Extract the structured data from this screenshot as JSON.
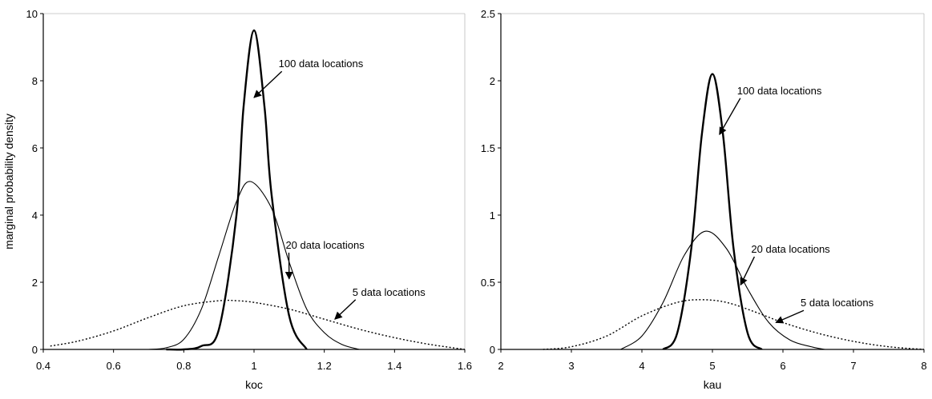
{
  "chart_data": [
    {
      "type": "line",
      "xlabel": "koc",
      "ylabel": "marginal probability density",
      "xlim": [
        0.4,
        1.6
      ],
      "ylim": [
        0,
        10
      ],
      "xticks": [
        "0.4",
        "0.6",
        "0.8",
        "1",
        "1.2",
        "1.4",
        "1.6"
      ],
      "yticks": [
        "0",
        "2",
        "4",
        "6",
        "8",
        "10"
      ],
      "grid": false,
      "series": [
        {
          "x": [
            0.75,
            0.8,
            0.85,
            0.9,
            0.95,
            0.97,
            1.0,
            1.03,
            1.05,
            1.1,
            1.15
          ],
          "y": [
            0.0,
            0.0,
            0.1,
            0.6,
            4.0,
            7.2,
            9.5,
            7.2,
            4.6,
            1.0,
            0.0
          ]
        },
        {
          "x": [
            0.7,
            0.75,
            0.8,
            0.85,
            0.9,
            0.95,
            0.99,
            1.05,
            1.1,
            1.15,
            1.2,
            1.25,
            1.3
          ],
          "y": [
            0.0,
            0.05,
            0.3,
            1.2,
            2.8,
            4.4,
            5.0,
            4.2,
            2.6,
            1.2,
            0.5,
            0.15,
            0.0
          ]
        },
        {
          "x": [
            0.42,
            0.5,
            0.6,
            0.7,
            0.8,
            0.9,
            0.95,
            1.0,
            1.1,
            1.2,
            1.3,
            1.4,
            1.5,
            1.6
          ],
          "y": [
            0.1,
            0.25,
            0.55,
            0.95,
            1.3,
            1.45,
            1.45,
            1.4,
            1.2,
            0.9,
            0.6,
            0.35,
            0.15,
            0.0
          ]
        }
      ],
      "annotations": [
        {
          "text": "100 data locations",
          "x": 1.07,
          "y": 8.4,
          "arrow_to": [
            1.0,
            7.5
          ]
        },
        {
          "text": "20 data locations",
          "x": 1.09,
          "y": 3.0,
          "arrow_to": [
            1.1,
            2.1
          ]
        },
        {
          "text": "5 data locations",
          "x": 1.28,
          "y": 1.6,
          "arrow_to": [
            1.23,
            0.9
          ]
        }
      ]
    },
    {
      "type": "line",
      "xlabel": "kau",
      "ylabel": "",
      "xlim": [
        2,
        8
      ],
      "ylim": [
        0,
        2.5
      ],
      "xticks": [
        "2",
        "3",
        "4",
        "5",
        "6",
        "7",
        "8"
      ],
      "yticks": [
        "0",
        "0.5",
        "1",
        "1.5",
        "2",
        "2.5"
      ],
      "grid": false,
      "series": [
        {
          "x": [
            4.3,
            4.5,
            4.7,
            4.85,
            5.0,
            5.15,
            5.3,
            5.5,
            5.7
          ],
          "y": [
            0.0,
            0.12,
            0.75,
            1.6,
            2.05,
            1.6,
            0.75,
            0.12,
            0.0
          ]
        },
        {
          "x": [
            3.7,
            4.0,
            4.3,
            4.6,
            4.9,
            5.2,
            5.5,
            5.8,
            6.1,
            6.4,
            6.6
          ],
          "y": [
            0.0,
            0.1,
            0.35,
            0.7,
            0.88,
            0.75,
            0.45,
            0.2,
            0.07,
            0.02,
            0.0
          ]
        },
        {
          "x": [
            2.6,
            3.0,
            3.5,
            4.0,
            4.5,
            4.85,
            5.2,
            5.6,
            6.0,
            6.5,
            7.0,
            7.5,
            8.0
          ],
          "y": [
            0.0,
            0.02,
            0.1,
            0.25,
            0.35,
            0.37,
            0.35,
            0.28,
            0.2,
            0.12,
            0.06,
            0.02,
            0.0
          ]
        }
      ],
      "annotations": [
        {
          "text": "100 data locations",
          "x": 5.35,
          "y": 1.9,
          "arrow_to": [
            5.1,
            1.6
          ]
        },
        {
          "text": "20 data locations",
          "x": 5.55,
          "y": 0.72,
          "arrow_to": [
            5.4,
            0.48
          ]
        },
        {
          "text": "5 data locations",
          "x": 6.25,
          "y": 0.32,
          "arrow_to": [
            5.9,
            0.2
          ]
        }
      ]
    }
  ]
}
